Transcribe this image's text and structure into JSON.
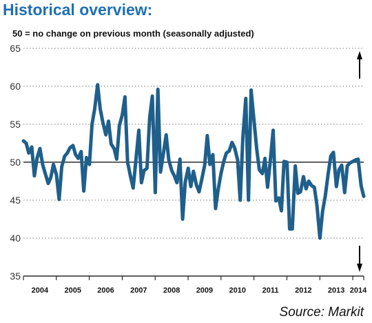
{
  "header": {
    "title": "Historical overview:",
    "subtitle": "50 = no change on previous month (seasonally adjusted)",
    "source": "Source: Markit"
  },
  "chart_data": {
    "type": "line",
    "title": "Historical overview:",
    "subtitle": "50 = no change on previous month (seasonally adjusted)",
    "xlabel": "",
    "ylabel": "",
    "ylim": [
      35,
      65
    ],
    "yticks": [
      35,
      40,
      45,
      50,
      55,
      60,
      65
    ],
    "reference_line": 50,
    "grid": "horizontal dotted",
    "x_tick_labels": [
      "2004",
      "2005",
      "2006",
      "2007",
      "2008",
      "2009",
      "2010",
      "2011",
      "2012",
      "2013",
      "2014"
    ],
    "x_range": [
      2003.917,
      2014.25
    ],
    "line_color": "#1f5f8b",
    "arrows": [
      "up-arrow-icon",
      "down-arrow-icon"
    ],
    "series": [
      {
        "x": [
          2003.92,
          2004.0,
          2004.08,
          2004.17,
          2004.25,
          2004.33,
          2004.42,
          2004.5,
          2004.58,
          2004.67,
          2004.75,
          2004.83,
          2004.92,
          2005.0,
          2005.08,
          2005.17,
          2005.25,
          2005.33,
          2005.42,
          2005.5,
          2005.58,
          2005.67,
          2005.75,
          2005.83,
          2005.92,
          2006.0,
          2006.08,
          2006.17,
          2006.25,
          2006.33,
          2006.42,
          2006.5,
          2006.58,
          2006.67,
          2006.75,
          2006.83,
          2006.92,
          2007.0,
          2007.08,
          2007.17,
          2007.25,
          2007.33,
          2007.42,
          2007.5,
          2007.58,
          2007.67,
          2007.75,
          2007.83,
          2007.92,
          2008.0,
          2008.08,
          2008.17,
          2008.25,
          2008.33,
          2008.42,
          2008.5,
          2008.58,
          2008.67,
          2008.75,
          2008.83,
          2008.92,
          2009.0,
          2009.08,
          2009.17,
          2009.25,
          2009.33,
          2009.42,
          2009.5,
          2009.58,
          2009.67,
          2009.75,
          2009.83,
          2009.92,
          2010.0,
          2010.08,
          2010.17,
          2010.25,
          2010.33,
          2010.42,
          2010.5,
          2010.58,
          2010.67,
          2010.75,
          2010.83,
          2010.92,
          2011.0,
          2011.08,
          2011.17,
          2011.25,
          2011.33,
          2011.42,
          2011.5,
          2011.58,
          2011.67,
          2011.75,
          2011.83,
          2011.92,
          2012.0,
          2012.08,
          2012.17,
          2012.25,
          2012.33,
          2012.42,
          2012.5,
          2012.58,
          2012.67,
          2012.75,
          2012.83,
          2012.92,
          2013.0,
          2013.08,
          2013.17,
          2013.25,
          2013.33,
          2013.42,
          2013.5,
          2013.58,
          2013.67,
          2013.75,
          2013.83,
          2013.92,
          2014.0,
          2014.08,
          2014.17,
          2014.25
        ],
        "y": [
          52.8,
          52.5,
          51.2,
          52.0,
          48.2,
          50.5,
          51.8,
          49.7,
          48.5,
          47.2,
          48.0,
          49.7,
          48.3,
          45.1,
          49.4,
          50.8,
          51.2,
          51.9,
          52.2,
          51.0,
          50.5,
          51.4,
          46.2,
          50.6,
          49.7,
          55.0,
          57.0,
          60.2,
          57.0,
          55.2,
          53.6,
          55.4,
          52.4,
          51.8,
          50.4,
          54.8,
          56.3,
          58.6,
          50.0,
          48.1,
          46.6,
          50.2,
          54.2,
          47.3,
          48.9,
          49.2,
          55.8,
          58.7,
          46.0,
          59.6,
          48.7,
          51.2,
          53.6,
          50.3,
          48.9,
          48.2,
          47.3,
          50.4,
          42.5,
          47.4,
          49.2,
          46.8,
          48.8,
          47.0,
          46.1,
          47.7,
          49.6,
          53.5,
          49.7,
          51.0,
          43.9,
          46.4,
          48.6,
          50.1,
          51.2,
          51.5,
          52.6,
          51.9,
          50.3,
          45.0,
          53.2,
          58.4,
          45.0,
          59.5,
          55.4,
          51.8,
          49.0,
          48.5,
          50.5,
          46.7,
          50.5,
          54.2,
          44.9,
          45.3,
          43.6,
          50.1,
          50.0,
          41.2,
          41.2,
          49.5,
          45.9,
          46.1,
          48.1,
          46.5,
          47.5,
          46.9,
          46.7,
          44.3,
          40.0,
          43.5,
          45.5,
          48.5,
          50.8,
          51.3,
          46.8,
          49.0,
          49.6,
          46.0,
          49.5,
          49.9,
          50.1,
          50.3,
          50.4,
          46.9,
          45.5
        ]
      }
    ]
  }
}
